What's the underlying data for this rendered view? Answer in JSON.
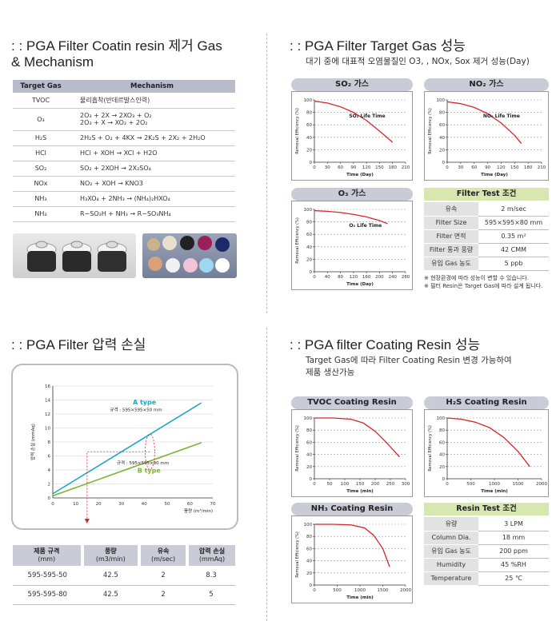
{
  "sections": {
    "mechanism_title_l1": ": : PGA Filter Coatin resin 제거 Gas",
    "mechanism_title_l2": "& Mechanism",
    "target_title": ": : PGA Filter Target Gas 성능",
    "target_sub": "대기 중에 대표적 오염물질인 O3, , NOx, Sox 제거 성능(Day)",
    "pressure_title": ": : PGA Filter 압력 손실",
    "coating_title": ": : PGA filter Coating Resin 성능",
    "coating_sub_l1": "Target Gas에 따라 Filter Coating Resin 변경 가능하여",
    "coating_sub_l2": "제품 생산가능"
  },
  "mechanism_table": {
    "headers": [
      "Target Gas",
      "Mechanism"
    ],
    "rows": [
      {
        "gas": "TVOC",
        "mech": [
          "물리흡착(반데르발스인력)"
        ]
      },
      {
        "gas": "O₃",
        "mech": [
          "2O₃ + 2X → 2XO₃ + O₂",
          "2O₃ + X → XO₂ + 2O₂"
        ]
      },
      {
        "gas": "H₂S",
        "mech": [
          "2H₂S + O₂ + 4KX → 2K₂S + 2X₂ + 2H₂O"
        ]
      },
      {
        "gas": "HCl",
        "mech": [
          "HCl + XOH → XCl + H2O"
        ]
      },
      {
        "gas": "SO₂",
        "mech": [
          "SO₂ + 2XOH → 2X₂SO₄"
        ]
      },
      {
        "gas": "NOx",
        "mech": [
          "NO₂ + XOH → KNO3"
        ]
      },
      {
        "gas": "NH₃",
        "mech": [
          "H₃XO₄ + 2NH₃ → (NH₄)₂HXO₄"
        ]
      },
      {
        "gas": "NH₃",
        "mech": [
          "R−SO₃H + NH₃ → R−SO₃NH₄"
        ]
      }
    ]
  },
  "chart_data": [
    {
      "id": "so2",
      "type": "line",
      "title": "SO₂ 가스",
      "xlabel": "Time (Day)",
      "ylabel": "Removal Efficiency (%)",
      "annotation": "SO₂ Life Time",
      "xticks": [
        0,
        30,
        60,
        90,
        120,
        150,
        180,
        210
      ],
      "yticks": [
        0,
        20,
        40,
        60,
        80,
        100
      ],
      "xlim": [
        0,
        210
      ],
      "ylim": [
        0,
        100
      ],
      "series": [
        {
          "x": [
            0,
            30,
            60,
            90,
            120,
            150,
            180
          ],
          "y": [
            98,
            95,
            89,
            80,
            67,
            50,
            32
          ]
        }
      ]
    },
    {
      "id": "no2",
      "type": "line",
      "title": "NO₂ 가스",
      "xlabel": "Time (Day)",
      "ylabel": "Removal Efficiency (%)",
      "annotation": "NO₂ Life Time",
      "xticks": [
        0,
        30,
        60,
        90,
        120,
        150,
        180,
        210
      ],
      "yticks": [
        0,
        20,
        40,
        60,
        80,
        100
      ],
      "xlim": [
        0,
        210
      ],
      "ylim": [
        0,
        100
      ],
      "series": [
        {
          "x": [
            0,
            30,
            60,
            90,
            120,
            150,
            165
          ],
          "y": [
            97,
            94,
            88,
            78,
            63,
            43,
            30
          ]
        }
      ]
    },
    {
      "id": "o3",
      "type": "line",
      "title": "O₃ 가스",
      "xlabel": "Time (Day)",
      "ylabel": "Removal Efficiency (%)",
      "annotation": "O₃ Life Time",
      "xticks": [
        0,
        40,
        80,
        120,
        160,
        200,
        240,
        280
      ],
      "yticks": [
        0,
        20,
        40,
        60,
        80,
        100
      ],
      "xlim": [
        0,
        280
      ],
      "ylim": [
        0,
        100
      ],
      "series": [
        {
          "x": [
            0,
            40,
            80,
            120,
            160,
            200,
            225
          ],
          "y": [
            98,
            97,
            95,
            92,
            88,
            82,
            77
          ]
        }
      ]
    },
    {
      "id": "pressure",
      "type": "line",
      "xlabel": "풍량 (m³/min)",
      "ylabel": "압력 손실 (mmAq)",
      "xticks": [
        0,
        10,
        20,
        30,
        40,
        50,
        60,
        70
      ],
      "yticks": [
        0,
        2.0,
        4.0,
        6.0,
        8.0,
        10.0,
        12.0,
        14.0,
        16.0
      ],
      "xlim": [
        0,
        70
      ],
      "ylim": [
        0,
        16
      ],
      "series": [
        {
          "name": "A type",
          "spec": "규격 : 595×595×50 mm",
          "x": [
            0,
            65
          ],
          "y": [
            0.6,
            13.6
          ]
        },
        {
          "name": "B type",
          "spec": "규격 : 595×595×80 mm",
          "x": [
            0,
            65
          ],
          "y": [
            0.3,
            7.9
          ]
        }
      ]
    },
    {
      "id": "tvoc",
      "type": "line",
      "title": "TVOC Coating Resin",
      "xlabel": "Time (min)",
      "ylabel": "Removal Efficiency (%)",
      "xticks": [
        0,
        50,
        100,
        150,
        200,
        250,
        300
      ],
      "yticks": [
        0,
        20,
        40,
        60,
        80,
        100
      ],
      "xlim": [
        0,
        300
      ],
      "ylim": [
        0,
        100
      ],
      "series": [
        {
          "x": [
            0,
            60,
            120,
            160,
            200,
            240,
            280
          ],
          "y": [
            100,
            100,
            98,
            92,
            78,
            58,
            36
          ]
        }
      ]
    },
    {
      "id": "h2s",
      "type": "line",
      "title": "H₂S Coating Resin",
      "xlabel": "Time (min)",
      "ylabel": "Removal Efficiency (%)",
      "xticks": [
        0,
        500,
        1000,
        1500,
        2000
      ],
      "yticks": [
        0,
        20,
        40,
        60,
        80,
        100
      ],
      "xlim": [
        0,
        2000
      ],
      "ylim": [
        0,
        100
      ],
      "series": [
        {
          "x": [
            0,
            300,
            600,
            900,
            1200,
            1500,
            1750
          ],
          "y": [
            100,
            98,
            93,
            84,
            68,
            45,
            20
          ]
        }
      ]
    },
    {
      "id": "nh3",
      "type": "line",
      "title": "NH₃ Coating Resin",
      "xlabel": "Time (min)",
      "ylabel": "Removal Efficiency (%)",
      "xticks": [
        0,
        500,
        1000,
        1500,
        2000
      ],
      "yticks": [
        0,
        20,
        40,
        60,
        80,
        100
      ],
      "xlim": [
        0,
        2000
      ],
      "ylim": [
        0,
        100
      ],
      "series": [
        {
          "x": [
            0,
            400,
            800,
            1100,
            1300,
            1500,
            1650
          ],
          "y": [
            100,
            100,
            99,
            94,
            82,
            60,
            30
          ]
        }
      ]
    }
  ],
  "filter_test": {
    "title": "Filter Test 조건",
    "rows": [
      {
        "k": "유속",
        "v": "2 m/sec"
      },
      {
        "k": "Filter Size",
        "v": "595×595×80 mm"
      },
      {
        "k": "Filter 면적",
        "v": "0.35 m²"
      },
      {
        "k": "Filter 통과 풍량",
        "v": "42 CMM"
      },
      {
        "k": "유입 Gas 농도",
        "v": "5 ppb"
      }
    ],
    "note1": "※ 현장환경에 따라 성능이 변할 수 있습니다.",
    "note2": "※ 필터 Resin은 Target Gas에 따라 설계 됩니다."
  },
  "resin_test": {
    "title": "Resin Test 조건",
    "rows": [
      {
        "k": "유량",
        "v": "3 LPM"
      },
      {
        "k": "Column Dia.",
        "v": "18 mm"
      },
      {
        "k": "유입 Gas 농도",
        "v": "200 ppm"
      },
      {
        "k": "Humidity",
        "v": "45 %RH"
      },
      {
        "k": "Temperature",
        "v": "25 ℃"
      }
    ]
  },
  "pressure_table": {
    "headers": [
      [
        "제품 규격",
        "(mm)"
      ],
      [
        "풍량",
        "(m3/min)"
      ],
      [
        "유속",
        "(m/sec)"
      ],
      [
        "압력 손실",
        "(mmAq)"
      ]
    ],
    "rows": [
      [
        "595-595-50",
        "42.5",
        "2",
        "8.3"
      ],
      [
        "595-595-80",
        "42.5",
        "2",
        "5"
      ]
    ]
  },
  "colors": {
    "curve": "#d8252a",
    "a_type": "#1aa8c4",
    "b_type": "#79b530",
    "panel_title": "#c9ccd7",
    "test_head": "#d8e6b0"
  }
}
